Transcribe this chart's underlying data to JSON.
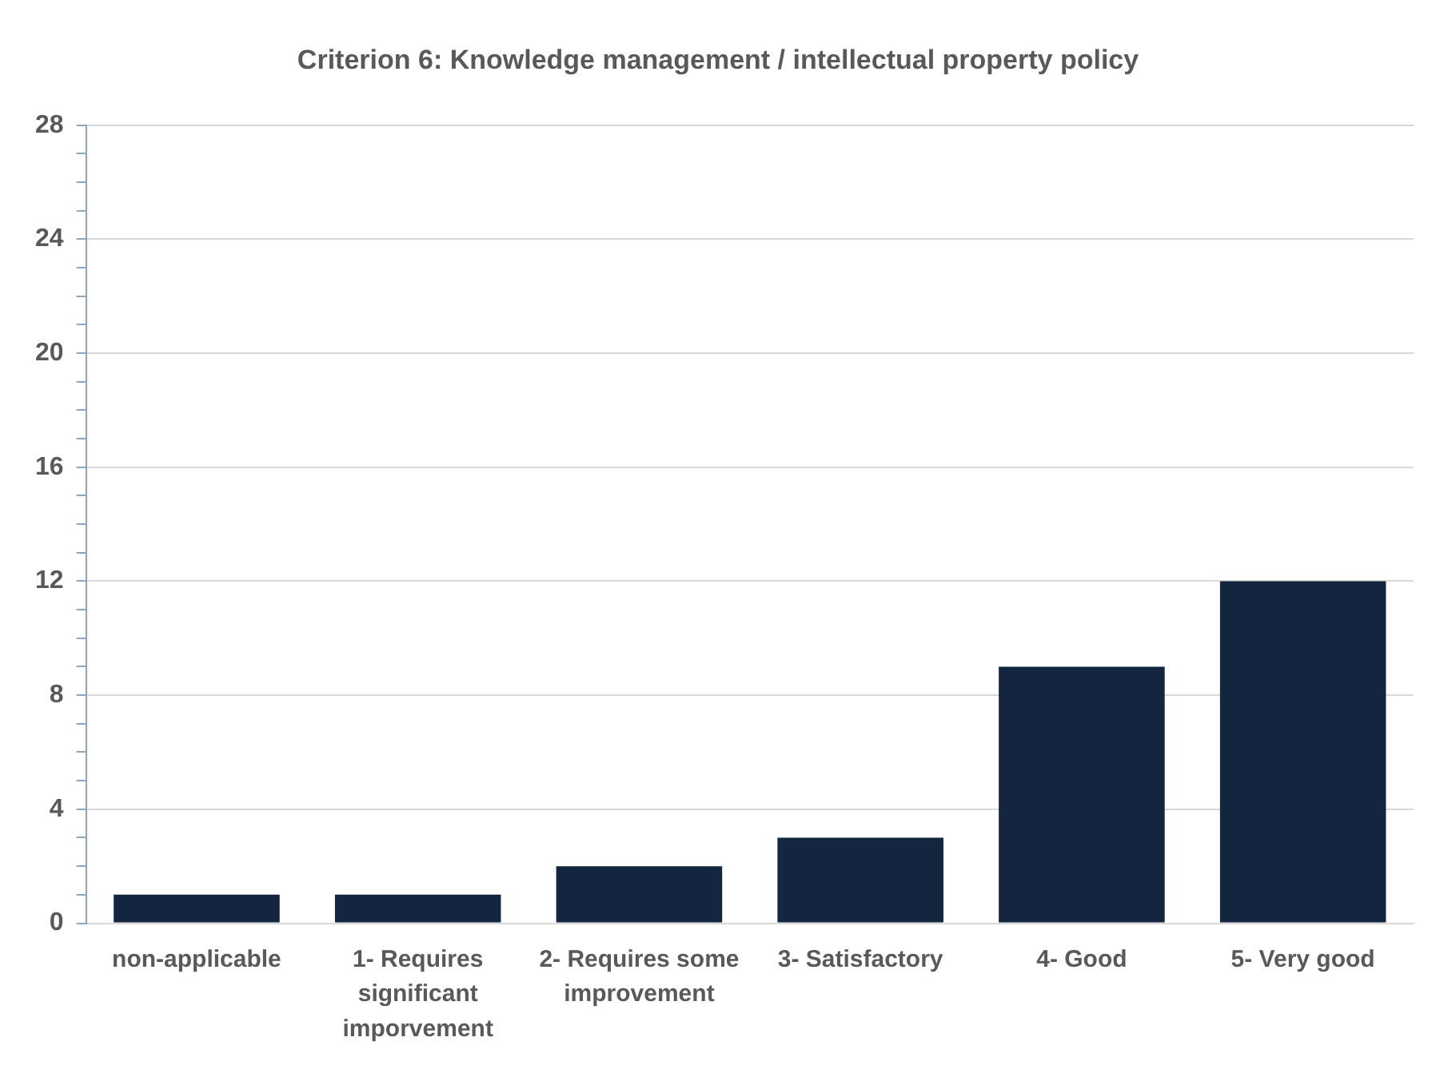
{
  "chart_data": {
    "type": "bar",
    "title": "Criterion 6: Knowledge management / intellectual property policy",
    "categories": [
      "non-applicable",
      "1- Requires significant imporvement",
      "2- Requires some improvement",
      "3- Satisfactory",
      "4- Good",
      "5- Very good"
    ],
    "values": [
      1,
      1,
      2,
      3,
      9,
      12
    ],
    "color": "#13253f",
    "ylim": [
      0,
      28
    ],
    "yticks": [
      0,
      {
        "value": 1,
        "label": null
      },
      {
        "value": 2,
        "label": null
      },
      {
        "value": 3,
        "label": null
      },
      4,
      {
        "value": 5,
        "label": null
      },
      {
        "value": 6,
        "label": null
      },
      {
        "value": 7,
        "label": null
      },
      8,
      {
        "value": 9,
        "label": null
      },
      {
        "value": 10,
        "label": null
      },
      {
        "value": 11,
        "label": null
      },
      12,
      {
        "value": 13,
        "label": null
      },
      {
        "value": 14,
        "label": null
      },
      {
        "value": 15,
        "label": null
      },
      16,
      {
        "value": 17,
        "label": null
      },
      {
        "value": 18,
        "label": null
      },
      {
        "value": 19,
        "label": null
      },
      20,
      {
        "value": 21,
        "label": null
      },
      {
        "value": 22,
        "label": null
      },
      {
        "value": 23,
        "label": null
      },
      24,
      {
        "value": 25,
        "label": null
      },
      {
        "value": 26,
        "label": null
      },
      {
        "value": 27,
        "label": null
      },
      28
    ],
    "grid": "y"
  }
}
